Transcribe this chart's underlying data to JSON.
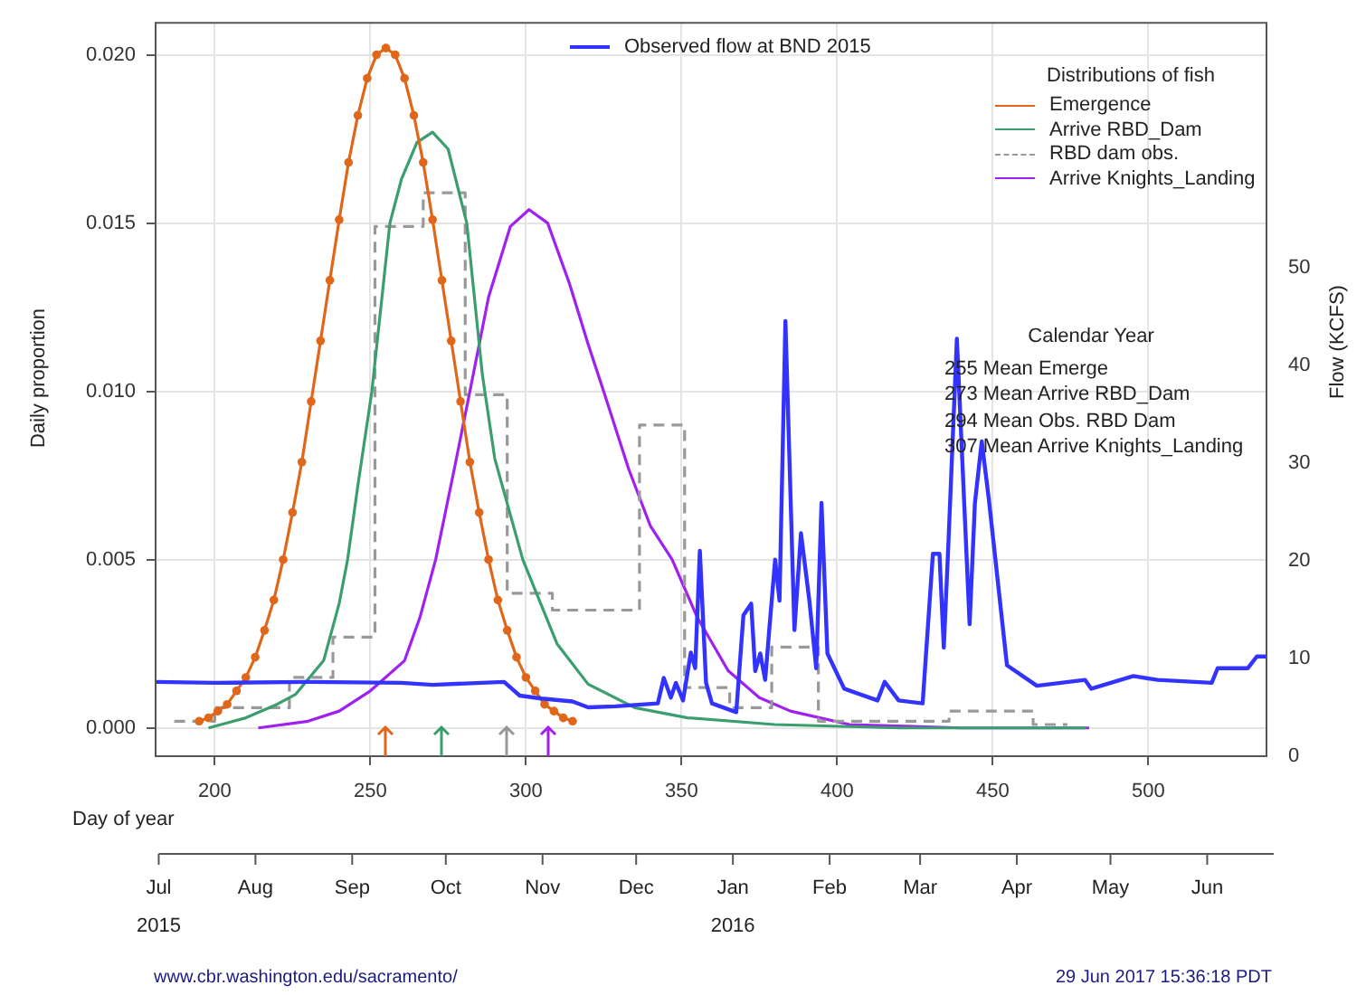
{
  "chart_data": {
    "type": "line",
    "ylabel": "Daily proportion",
    "y2label": "Flow (KCFS)",
    "xlabel": "Day of year",
    "legend_title": "Distributions of fish",
    "legend": "top right",
    "grid": true,
    "xlim": [
      181,
      538
    ],
    "xticks": [
      200,
      250,
      300,
      350,
      400,
      450,
      500
    ],
    "ylim": [
      -0.00084,
      0.02095
    ],
    "yticks": [
      {
        "value": 0,
        "label": "0.000"
      },
      {
        "value": 0.005,
        "label": "0.005"
      },
      {
        "value": 0.01,
        "label": "0.010"
      },
      {
        "value": 0.015,
        "label": "0.015"
      },
      {
        "value": 0.02,
        "label": "0.020"
      }
    ],
    "y2lim": [
      0,
      75
    ],
    "y2ticks": [
      0,
      10,
      20,
      30,
      40,
      50
    ],
    "x2lim": [
      "2015-06-30",
      "2016-06-20"
    ],
    "x2ticks": [
      {
        "value": "2015-07-01",
        "label": "Jul\n2015"
      },
      {
        "value": "2015-08-01",
        "label": "Aug"
      },
      {
        "value": "2015-09-01",
        "label": "Sep"
      },
      {
        "value": "2015-10-01",
        "label": "Oct"
      },
      {
        "value": "2015-11-01",
        "label": "Nov"
      },
      {
        "value": "2015-12-01",
        "label": "Dec"
      },
      {
        "value": "2016-01-01",
        "label": "Jan\n2016"
      },
      {
        "value": "2016-02-01",
        "label": "Feb"
      },
      {
        "value": "2016-03-01",
        "label": "Mar"
      },
      {
        "value": "2016-04-01",
        "label": "Apr"
      },
      {
        "value": "2016-05-01",
        "label": "May"
      },
      {
        "value": "2016-06-01",
        "label": "Jun"
      }
    ],
    "series": [
      {
        "name": "Observed flow at BND 2015",
        "axis": "y2",
        "color": "#3333ff",
        "marker": "none",
        "line_style": "solid",
        "x": [
          181,
          200,
          230,
          260,
          270,
          293,
          298,
          305,
          315,
          320,
          328.8,
          342.4,
          344.3,
          346.6,
          348.2,
          350.5,
          353,
          354.4,
          355.9,
          357.9,
          359.8,
          367.6,
          369.9,
          372.4,
          373.7,
          375.3,
          376.9,
          378.2,
          380.1,
          381.5,
          383.4,
          386.3,
          388.4,
          391.1,
          393.3,
          395,
          396.9,
          402.3,
          413,
          415.3,
          419.8,
          427.5,
          430.8,
          432.9,
          434.3,
          435.8,
          438.5,
          442.6,
          444.3,
          446.5,
          448.8,
          454.6,
          464.2,
          479.7,
          481.7,
          495.2,
          503,
          520.4,
          522.3,
          532,
          534.9,
          538
        ],
        "values": [
          7.6,
          7.5,
          7.6,
          7.5,
          7.3,
          7.6,
          6.2,
          5.9,
          5.6,
          5.0,
          5.1,
          5.4,
          8.0,
          6.0,
          7.5,
          5.7,
          10.6,
          9.0,
          21.0,
          7.5,
          5.4,
          4.5,
          14.4,
          15.6,
          8.7,
          10.5,
          7.8,
          12.9,
          20.1,
          15.9,
          44.5,
          12.9,
          22.8,
          15.9,
          9.0,
          25.9,
          10.5,
          6.9,
          5.7,
          7.6,
          5.7,
          5.4,
          20.7,
          20.7,
          11.1,
          21.9,
          42.7,
          13.5,
          25.9,
          32.2,
          26.2,
          9.3,
          7.2,
          7.8,
          6.9,
          8.2,
          7.8,
          7.5,
          9.0,
          9.0,
          10.2,
          10.2
        ]
      },
      {
        "name": "Emergence",
        "color": "#e0661a",
        "marker": "circle",
        "line_style": "solid",
        "x": [
          195,
          198,
          201,
          204,
          207,
          210,
          213,
          216,
          219,
          222,
          225,
          228,
          231,
          234,
          237,
          240,
          243,
          246,
          249,
          252,
          255,
          258,
          261,
          264,
          267,
          270,
          273,
          276,
          279,
          282,
          285,
          288,
          291,
          294,
          297,
          300,
          303,
          306,
          309,
          312,
          315
        ],
        "values": [
          0.0002,
          0.0003,
          0.0005,
          0.0007,
          0.0011,
          0.0015,
          0.0021,
          0.0029,
          0.0038,
          0.005,
          0.0064,
          0.0079,
          0.0097,
          0.0115,
          0.0133,
          0.0151,
          0.0168,
          0.0182,
          0.0193,
          0.02,
          0.0202,
          0.02,
          0.0193,
          0.0182,
          0.0168,
          0.0151,
          0.0133,
          0.0115,
          0.0097,
          0.0079,
          0.0064,
          0.005,
          0.0038,
          0.0029,
          0.0021,
          0.0015,
          0.0011,
          0.0007,
          0.0005,
          0.0003,
          0.0002
        ]
      },
      {
        "name": "Arrive RBD_Dam",
        "color": "#3a9e6e",
        "marker": "none",
        "line_style": "solid",
        "x": [
          198,
          210,
          220,
          226,
          235,
          240,
          242.7,
          246,
          250.5,
          256.3,
          260,
          265,
          270,
          275,
          281,
          286,
          290,
          299,
          310,
          320,
          335,
          352,
          380,
          420,
          480
        ],
        "values": [
          0,
          0.0003,
          0.0007,
          0.001,
          0.002,
          0.0037,
          0.005,
          0.0072,
          0.01,
          0.015,
          0.0163,
          0.0174,
          0.0177,
          0.0172,
          0.015,
          0.0105,
          0.008,
          0.005,
          0.0025,
          0.0013,
          0.0006,
          0.0003,
          0.0001,
          0,
          0
        ]
      },
      {
        "name": "RBD dam obs.",
        "type": "step",
        "color": "#999999",
        "marker": "none",
        "line_style": "dashed",
        "x": [
          187,
          200,
          224,
          238,
          251.5,
          267,
          280.5,
          294,
          308.5,
          336.5,
          351,
          365.5,
          379,
          394,
          436,
          463,
          474
        ],
        "values": [
          0.0002,
          0.0006,
          0.0015,
          0.0027,
          0.0149,
          0.0159,
          0.0099,
          0.004,
          0.0035,
          0.009,
          0.0012,
          0.0006,
          0.0024,
          0.0002,
          0.0005,
          0.0001,
          0.0001
        ]
      },
      {
        "name": "Arrive Knights_Landing",
        "color": "#a020f0",
        "marker": "none",
        "line_style": "solid",
        "x": [
          214,
          230,
          240,
          250,
          261,
          266,
          271,
          277,
          282,
          288,
          295,
          301,
          307,
          314,
          320,
          325,
          333,
          340,
          347,
          355,
          365,
          375,
          385,
          404,
          440,
          481
        ],
        "values": [
          0,
          0.0002,
          0.0005,
          0.0011,
          0.002,
          0.0033,
          0.005,
          0.0077,
          0.01,
          0.0128,
          0.0149,
          0.0154,
          0.015,
          0.0132,
          0.0114,
          0.01,
          0.0077,
          0.006,
          0.005,
          0.0033,
          0.0017,
          0.0009,
          0.0005,
          0.0001,
          0,
          0
        ]
      }
    ],
    "annotations": [
      "Calendar Year",
      "255 Mean Emerge",
      "273 Mean Arrive RBD_Dam",
      "294 Mean Obs. RBD Dam",
      "307 Mean Arrive Knights_Landing",
      "www.cbr.washington.edu/sacramento/",
      "29 Jun 2017 15:36:18 PDT"
    ]
  }
}
